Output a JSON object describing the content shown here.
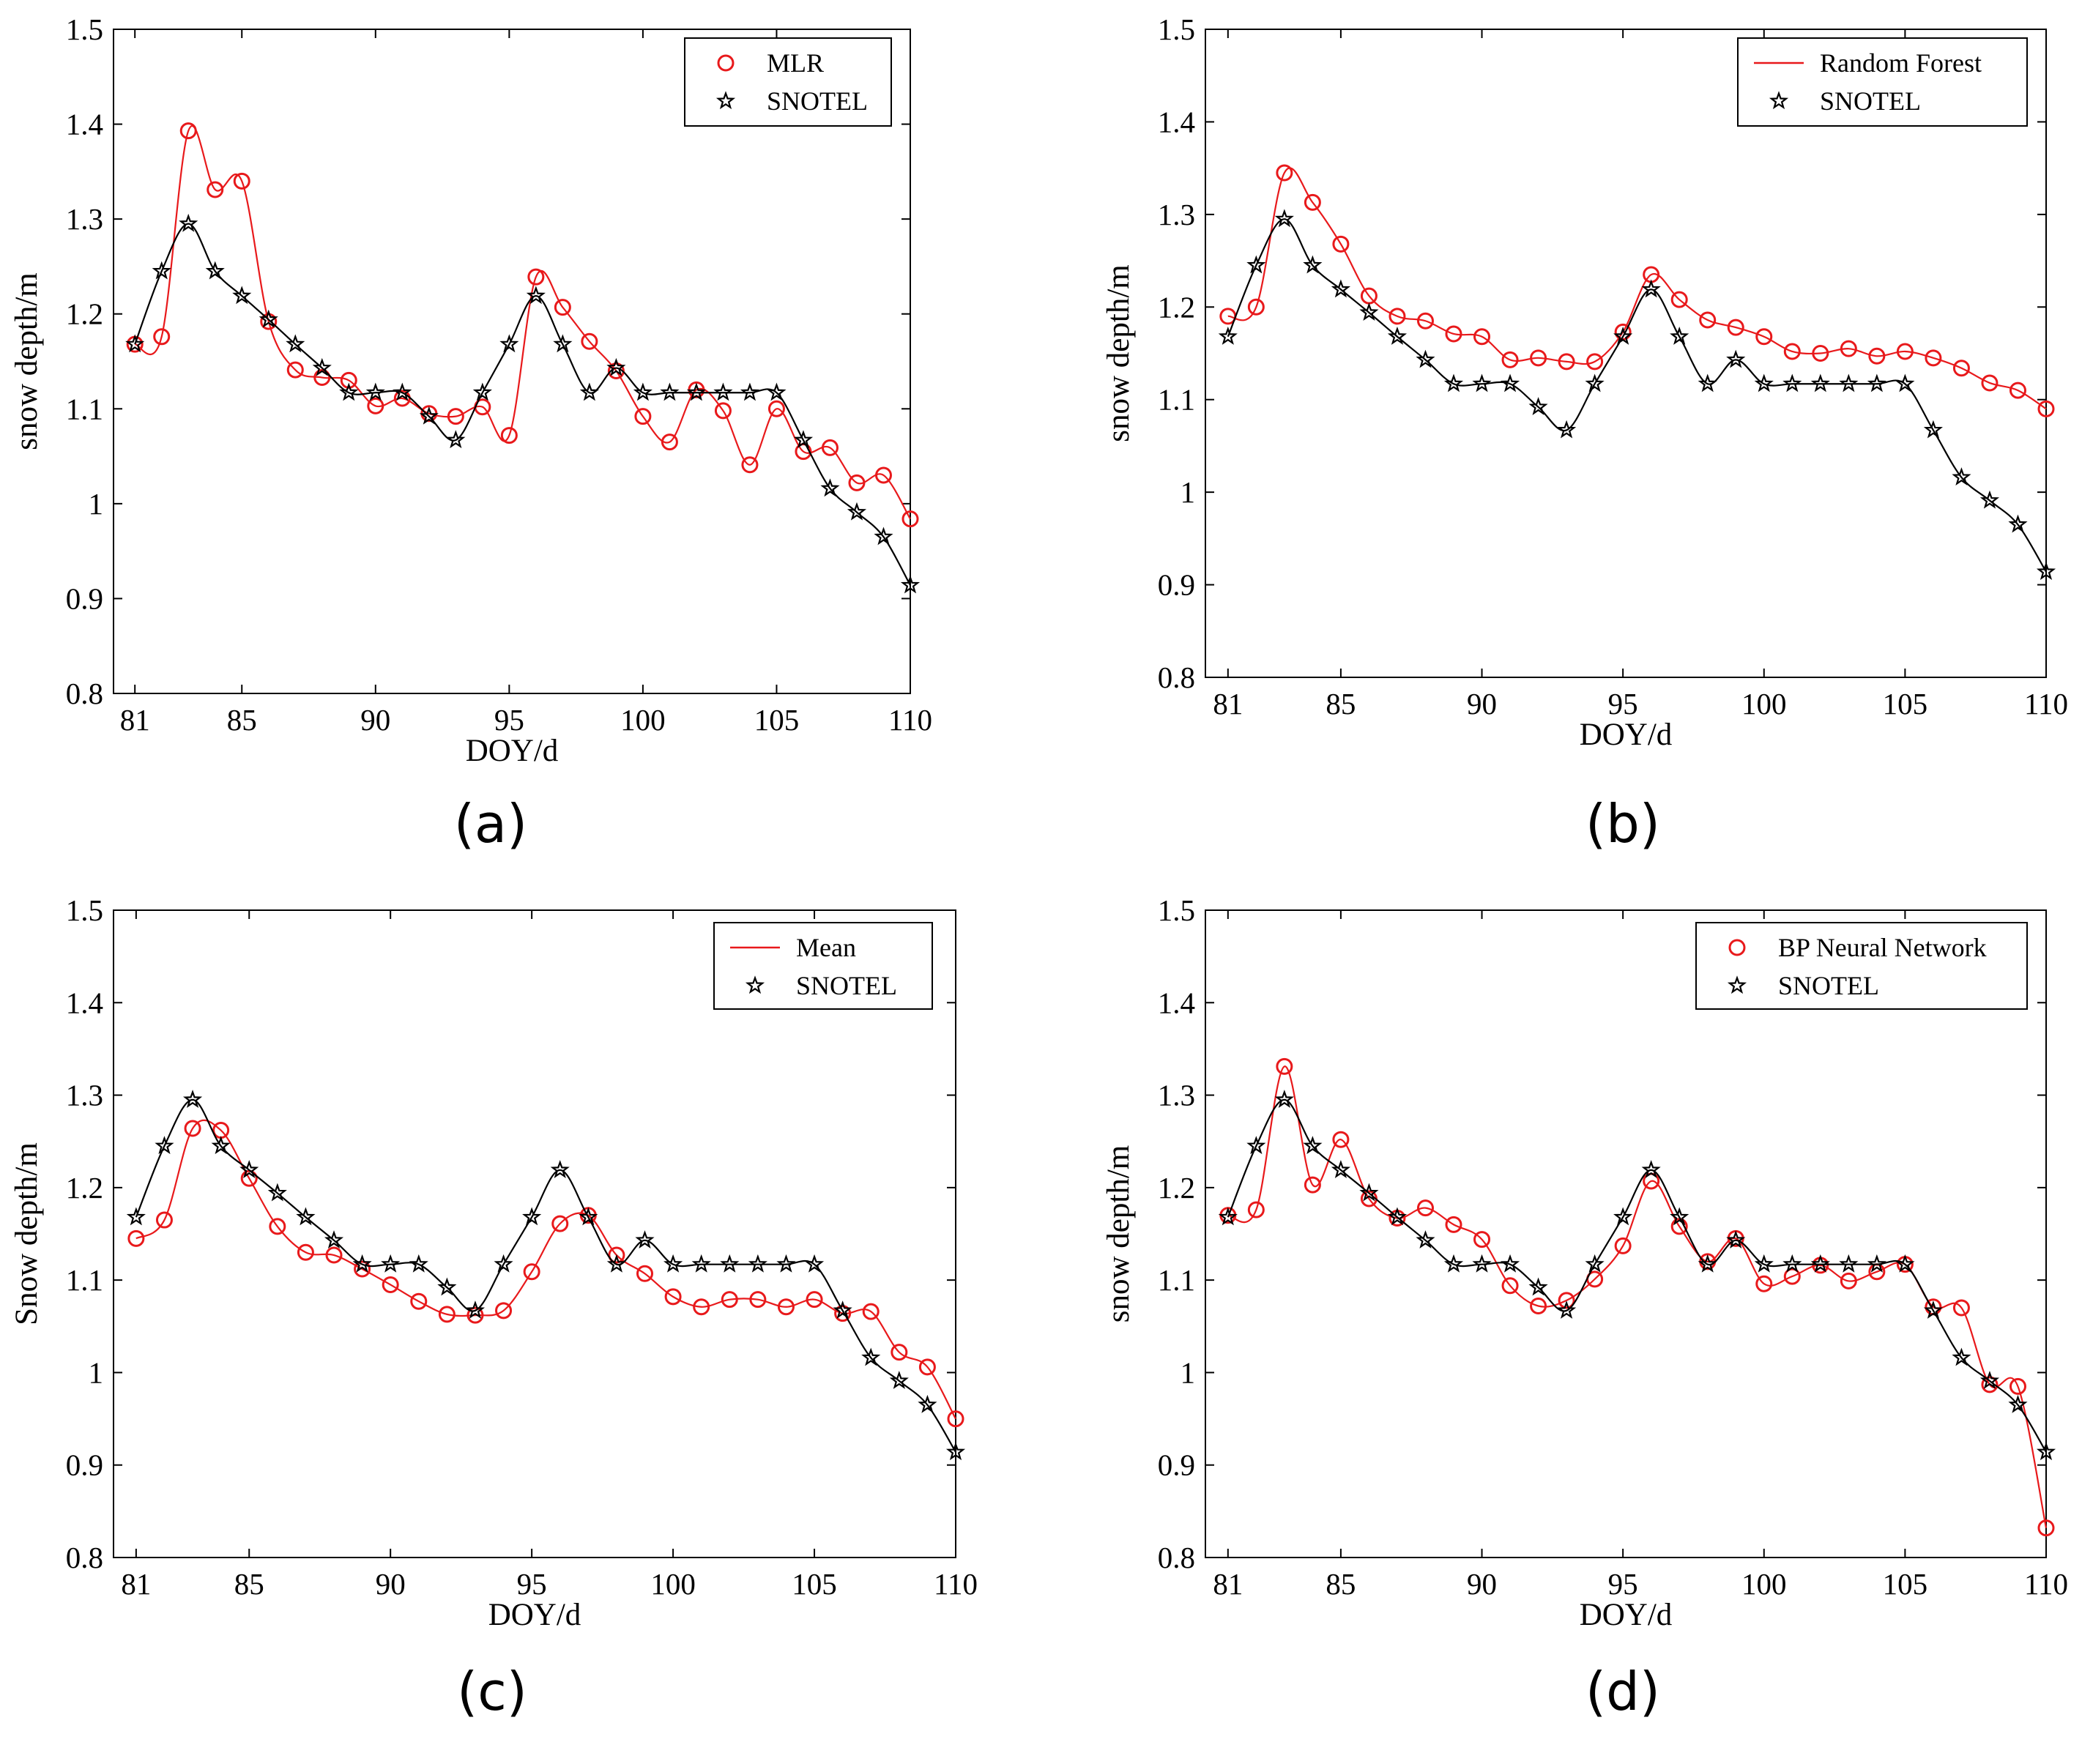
{
  "colors": {
    "model": "#e8191b",
    "snotel": "#000000",
    "axes": "#000000"
  },
  "chart_data": [
    {
      "type": "line",
      "panel_label": "(a)",
      "xlabel": "DOY/d",
      "ylabel": "snow depth/m",
      "xlim": [
        80.2,
        110
      ],
      "ylim": [
        0.8,
        1.5
      ],
      "xticks": [
        81,
        85,
        90,
        95,
        100,
        105,
        110
      ],
      "yticks": [
        0.8,
        0.9,
        1,
        1.1,
        1.2,
        1.3,
        1.4,
        1.5
      ],
      "ytick_labels": [
        "0.8",
        "0.9",
        "1",
        "1.1",
        "1.2",
        "1.3",
        "1.4",
        "1.5"
      ],
      "legend_position": "top-right",
      "series": [
        {
          "name": "MLR",
          "style": "markers+smooth-line",
          "color": "#e8191b",
          "marker": "circle",
          "legend_marker": "circle",
          "x": [
            81,
            82,
            83,
            84,
            85,
            86,
            87,
            88,
            89,
            90,
            91,
            92,
            93,
            94,
            95,
            96,
            97,
            98,
            99,
            100,
            101,
            102,
            103,
            104,
            105,
            106,
            107,
            108,
            109,
            110
          ],
          "values": [
            1.168,
            1.176,
            1.393,
            1.331,
            1.34,
            1.192,
            1.141,
            1.133,
            1.13,
            1.103,
            1.111,
            1.095,
            1.092,
            1.102,
            1.072,
            1.239,
            1.207,
            1.171,
            1.14,
            1.092,
            1.065,
            1.12,
            1.098,
            1.041,
            1.1,
            1.055,
            1.059,
            1.022,
            1.03,
            0.984
          ]
        },
        {
          "name": "SNOTEL",
          "style": "markers+smooth-line",
          "color": "#000000",
          "marker": "star",
          "legend_marker": "star",
          "x": [
            81,
            82,
            83,
            84,
            85,
            86,
            87,
            88,
            89,
            90,
            91,
            92,
            93,
            94,
            95,
            96,
            97,
            98,
            99,
            100,
            101,
            102,
            103,
            104,
            105,
            106,
            107,
            108,
            109,
            110
          ],
          "values": [
            1.168,
            1.245,
            1.295,
            1.245,
            1.219,
            1.194,
            1.168,
            1.143,
            1.117,
            1.117,
            1.117,
            1.092,
            1.067,
            1.117,
            1.168,
            1.219,
            1.168,
            1.117,
            1.143,
            1.117,
            1.117,
            1.117,
            1.117,
            1.117,
            1.117,
            1.067,
            1.016,
            0.991,
            0.965,
            0.914
          ]
        }
      ]
    },
    {
      "type": "line",
      "panel_label": "(b)",
      "xlabel": "DOY/d",
      "ylabel": "snow depth/m",
      "xlim": [
        80.2,
        110
      ],
      "ylim": [
        0.8,
        1.5
      ],
      "xticks": [
        81,
        85,
        90,
        95,
        100,
        105,
        110
      ],
      "yticks": [
        0.8,
        0.9,
        1,
        1.1,
        1.2,
        1.3,
        1.4,
        1.5
      ],
      "ytick_labels": [
        "0.8",
        "0.9",
        "1",
        "1.1",
        "1.2",
        "1.3",
        "1.4",
        "1.5"
      ],
      "legend_position": "top-right",
      "series": [
        {
          "name": "Random Forest",
          "style": "markers+smooth-line",
          "color": "#e8191b",
          "marker": "circle",
          "legend_marker": "line",
          "x": [
            81,
            82,
            83,
            84,
            85,
            86,
            87,
            88,
            89,
            90,
            91,
            92,
            93,
            94,
            95,
            96,
            97,
            98,
            99,
            100,
            101,
            102,
            103,
            104,
            105,
            106,
            107,
            108,
            109,
            110
          ],
          "values": [
            1.19,
            1.2,
            1.345,
            1.313,
            1.268,
            1.212,
            1.19,
            1.185,
            1.171,
            1.168,
            1.143,
            1.145,
            1.141,
            1.141,
            1.173,
            1.235,
            1.208,
            1.186,
            1.178,
            1.168,
            1.152,
            1.15,
            1.155,
            1.147,
            1.152,
            1.145,
            1.134,
            1.118,
            1.11,
            1.09
          ]
        },
        {
          "name": "SNOTEL",
          "style": "markers+smooth-line",
          "color": "#000000",
          "marker": "star",
          "legend_marker": "star",
          "x": [
            81,
            82,
            83,
            84,
            85,
            86,
            87,
            88,
            89,
            90,
            91,
            92,
            93,
            94,
            95,
            96,
            97,
            98,
            99,
            100,
            101,
            102,
            103,
            104,
            105,
            106,
            107,
            108,
            109,
            110
          ],
          "values": [
            1.168,
            1.245,
            1.295,
            1.245,
            1.219,
            1.194,
            1.168,
            1.143,
            1.117,
            1.117,
            1.117,
            1.092,
            1.067,
            1.117,
            1.168,
            1.219,
            1.168,
            1.117,
            1.143,
            1.117,
            1.117,
            1.117,
            1.117,
            1.117,
            1.117,
            1.067,
            1.016,
            0.991,
            0.965,
            0.914
          ]
        }
      ]
    },
    {
      "type": "line",
      "panel_label": "(c)",
      "xlabel": "DOY/d",
      "ylabel": "Snow depth/m",
      "xlim": [
        80.2,
        110
      ],
      "ylim": [
        0.8,
        1.5
      ],
      "xticks": [
        81,
        85,
        90,
        95,
        100,
        105,
        110
      ],
      "yticks": [
        0.8,
        0.9,
        1,
        1.1,
        1.2,
        1.3,
        1.4,
        1.5
      ],
      "ytick_labels": [
        "0.8",
        "0.9",
        "1",
        "1.1",
        "1.2",
        "1.3",
        "1.4",
        "1.5"
      ],
      "legend_position": "top-right",
      "series": [
        {
          "name": "Mean",
          "style": "markers+smooth-line",
          "color": "#e8191b",
          "marker": "circle",
          "legend_marker": "line",
          "x": [
            81,
            82,
            83,
            84,
            85,
            86,
            87,
            88,
            89,
            90,
            91,
            92,
            93,
            94,
            95,
            96,
            97,
            98,
            99,
            100,
            101,
            102,
            103,
            104,
            105,
            106,
            107,
            108,
            109,
            110
          ],
          "values": [
            1.145,
            1.165,
            1.264,
            1.262,
            1.21,
            1.158,
            1.13,
            1.127,
            1.112,
            1.095,
            1.077,
            1.063,
            1.062,
            1.067,
            1.109,
            1.161,
            1.17,
            1.127,
            1.107,
            1.082,
            1.071,
            1.079,
            1.079,
            1.071,
            1.079,
            1.064,
            1.066,
            1.022,
            1.006,
            0.95
          ]
        },
        {
          "name": "SNOTEL",
          "style": "markers+smooth-line",
          "color": "#000000",
          "marker": "star",
          "legend_marker": "star",
          "x": [
            81,
            82,
            83,
            84,
            85,
            86,
            87,
            88,
            89,
            90,
            91,
            92,
            93,
            94,
            95,
            96,
            97,
            98,
            99,
            100,
            101,
            102,
            103,
            104,
            105,
            106,
            107,
            108,
            109,
            110
          ],
          "values": [
            1.168,
            1.245,
            1.295,
            1.245,
            1.219,
            1.194,
            1.168,
            1.143,
            1.117,
            1.117,
            1.117,
            1.092,
            1.067,
            1.117,
            1.168,
            1.219,
            1.168,
            1.117,
            1.143,
            1.117,
            1.117,
            1.117,
            1.117,
            1.117,
            1.117,
            1.067,
            1.016,
            0.991,
            0.965,
            0.914
          ]
        }
      ]
    },
    {
      "type": "line",
      "panel_label": "(d)",
      "xlabel": "DOY/d",
      "ylabel": "snow depth/m",
      "xlim": [
        80.2,
        110
      ],
      "ylim": [
        0.8,
        1.5
      ],
      "xticks": [
        81,
        85,
        90,
        95,
        100,
        105,
        110
      ],
      "yticks": [
        0.8,
        0.9,
        1,
        1.1,
        1.2,
        1.3,
        1.4,
        1.5
      ],
      "ytick_labels": [
        "0.8",
        "0.9",
        "1",
        "1.1",
        "1.2",
        "1.3",
        "1.4",
        "1.5"
      ],
      "legend_position": "top-right",
      "series": [
        {
          "name": "BP Neural Network",
          "style": "markers+smooth-line",
          "color": "#e8191b",
          "marker": "circle",
          "legend_marker": "circle",
          "x": [
            81,
            82,
            83,
            84,
            85,
            86,
            87,
            88,
            89,
            90,
            91,
            92,
            93,
            94,
            95,
            96,
            97,
            98,
            99,
            100,
            101,
            102,
            103,
            104,
            105,
            106,
            107,
            108,
            109,
            110
          ],
          "values": [
            1.17,
            1.176,
            1.331,
            1.203,
            1.252,
            1.188,
            1.167,
            1.178,
            1.16,
            1.144,
            1.094,
            1.072,
            1.078,
            1.101,
            1.137,
            1.207,
            1.158,
            1.12,
            1.145,
            1.096,
            1.104,
            1.116,
            1.099,
            1.109,
            1.117,
            1.071,
            1.07,
            0.987,
            0.985,
            0.832
          ]
        },
        {
          "name": "SNOTEL",
          "style": "markers+smooth-line",
          "color": "#000000",
          "marker": "star",
          "legend_marker": "star",
          "x": [
            81,
            82,
            83,
            84,
            85,
            86,
            87,
            88,
            89,
            90,
            91,
            92,
            93,
            94,
            95,
            96,
            97,
            98,
            99,
            100,
            101,
            102,
            103,
            104,
            105,
            106,
            107,
            108,
            109,
            110
          ],
          "values": [
            1.168,
            1.245,
            1.295,
            1.245,
            1.219,
            1.194,
            1.168,
            1.143,
            1.117,
            1.117,
            1.117,
            1.092,
            1.067,
            1.117,
            1.168,
            1.219,
            1.168,
            1.117,
            1.143,
            1.117,
            1.117,
            1.117,
            1.117,
            1.117,
            1.117,
            1.067,
            1.016,
            0.991,
            0.965,
            0.914
          ]
        }
      ]
    }
  ]
}
